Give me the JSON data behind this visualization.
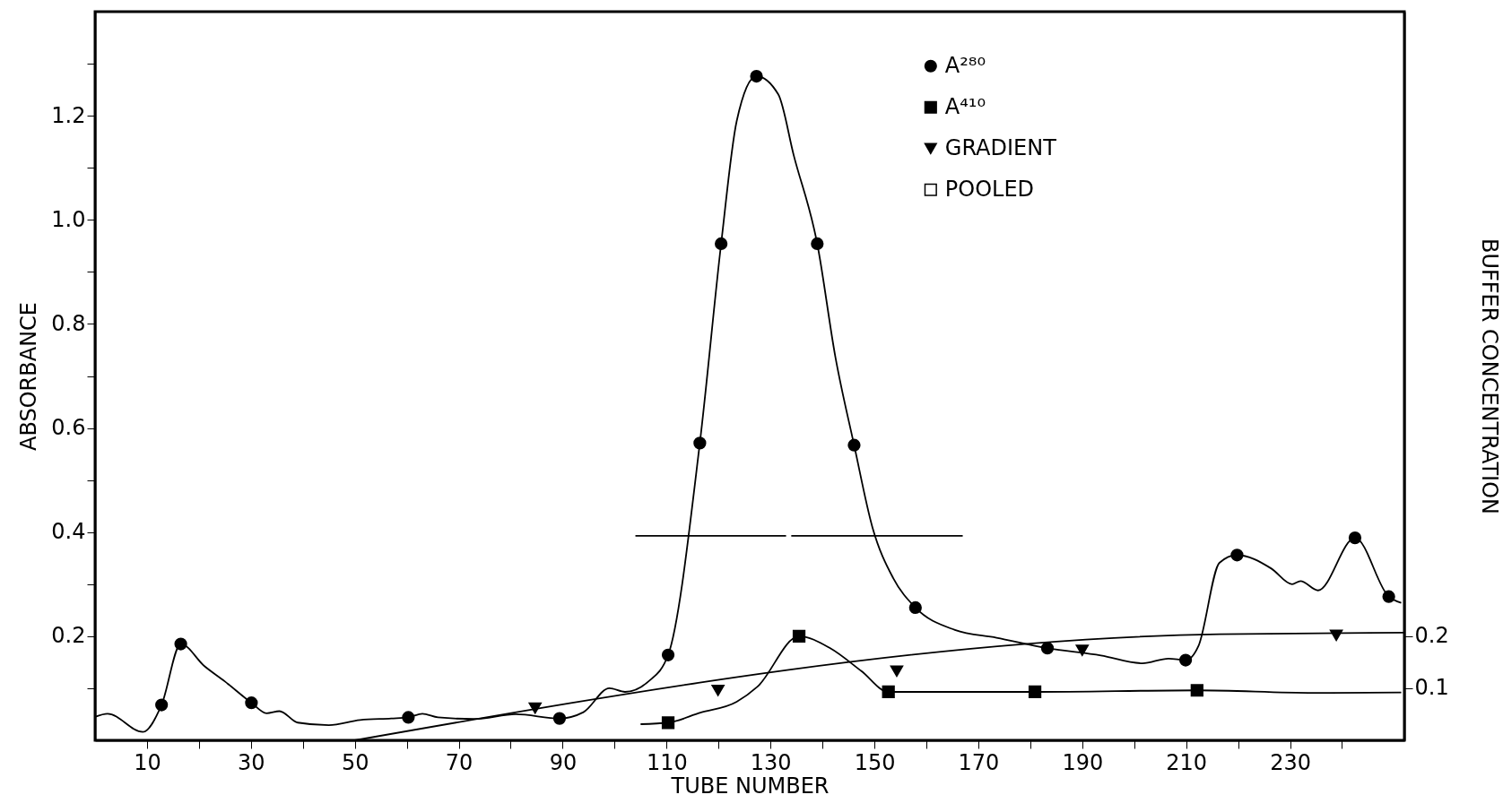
{
  "chart_data": {
    "type": "line",
    "xlabel": "TUBE NUMBER",
    "ylabel": "ABSORBANCE",
    "y2label": "BUFFER CONCENTRATION",
    "xlim": [
      0,
      252
    ],
    "ylim": [
      0,
      1.4
    ],
    "y2lim": [
      0,
      1.4
    ],
    "xticks": [
      10,
      {
        "value": 20,
        "label": null
      },
      30,
      {
        "value": 40,
        "label": null
      },
      50,
      {
        "value": 60,
        "label": null
      },
      70,
      {
        "value": 80,
        "label": null
      },
      90,
      {
        "value": 100,
        "label": null
      },
      110,
      {
        "value": 120,
        "label": null
      },
      130,
      {
        "value": 140,
        "label": null
      },
      150,
      {
        "value": 160,
        "label": null
      },
      170,
      {
        "value": 180,
        "label": null
      },
      190,
      {
        "value": 200,
        "label": null
      },
      210,
      {
        "value": 220,
        "label": null
      },
      230,
      {
        "value": 240,
        "label": null
      }
    ],
    "yticks": [
      {
        "value": 0.1,
        "label": null
      },
      0.2,
      {
        "value": 0.3,
        "label": null
      },
      0.4,
      {
        "value": 0.5,
        "label": null
      },
      0.6,
      {
        "value": 0.7,
        "label": null
      },
      0.8,
      {
        "value": 0.9,
        "label": null
      },
      {
        "value": 1.0,
        "label": "1.0"
      },
      {
        "value": 1.1,
        "label": null
      },
      1.2,
      {
        "value": 1.3,
        "label": null
      }
    ],
    "y2ticks": [
      0.1,
      0.2
    ],
    "grid": false,
    "legend": "top right",
    "line_style": "solid",
    "series": [
      {
        "marker": "none",
        "color": "#000000",
        "x": [
          0,
          2.4,
          9.2,
          12.8,
          16.5,
          21,
          25,
          30.1,
          33,
          35.5,
          39,
          45,
          51,
          57,
          60.3,
          63,
          66,
          73,
          81,
          89.4,
          94,
          99,
          102,
          106.5,
          110.3,
          116.4,
          120.5,
          123.5,
          127.3,
          131.5,
          134.5,
          139,
          142.5,
          146.1,
          149.6,
          153.6,
          157.9,
          165.5,
          173.5,
          183.3,
          193.6,
          201.6,
          206.6,
          209.9,
          212.4,
          216.4,
          219.8,
          226.4,
          230.4,
          232,
          235.4,
          242.5,
          249,
          251.4
        ],
        "values": [
          0.045,
          0.051,
          0.016,
          0.068,
          0.185,
          0.143,
          0.113,
          0.072,
          0.052,
          0.056,
          0.034,
          0.029,
          0.039,
          0.042,
          0.044,
          0.051,
          0.044,
          0.041,
          0.05,
          0.042,
          0.054,
          0.1,
          0.093,
          0.113,
          0.164,
          0.571,
          0.954,
          1.19,
          1.276,
          1.241,
          1.123,
          0.954,
          0.736,
          0.567,
          0.41,
          0.312,
          0.255,
          0.212,
          0.197,
          0.177,
          0.163,
          0.148,
          0.157,
          0.154,
          0.182,
          0.341,
          0.356,
          0.33,
          0.3,
          0.306,
          0.288,
          0.389,
          0.276,
          0.264
        ]
      },
      {
        "name": "A²⁸⁰",
        "type": "scatter",
        "marker": "circle",
        "color": "#000000",
        "x": [
          12.8,
          16.5,
          30.1,
          60.3,
          89.4,
          110.3,
          116.4,
          120.5,
          127.3,
          139,
          146.1,
          157.9,
          183.3,
          209.9,
          219.8,
          242.5,
          249
        ],
        "values": [
          0.068,
          0.185,
          0.072,
          0.044,
          0.042,
          0.164,
          0.571,
          0.954,
          1.276,
          0.954,
          0.567,
          0.255,
          0.177,
          0.154,
          0.356,
          0.389,
          0.276
        ]
      },
      {
        "marker": "none",
        "color": "#000000",
        "x": [
          105,
          110.3,
          116.5,
          123.5,
          127.5,
          135.5,
          141.5,
          147.5,
          152.7,
          180.9,
          212.1,
          234.5,
          251.4
        ],
        "values": [
          0.031,
          0.034,
          0.053,
          0.074,
          0.103,
          0.2,
          0.177,
          0.133,
          0.093,
          0.093,
          0.096,
          0.091,
          0.092
        ]
      },
      {
        "name": "A⁴¹⁰",
        "type": "scatter",
        "marker": "square",
        "color": "#000000",
        "x": [
          110.3,
          135.5,
          152.7,
          180.9,
          212.1
        ],
        "values": [
          0.034,
          0.2,
          0.093,
          0.093,
          0.096
        ]
      },
      {
        "marker": "none",
        "axis": "y2",
        "color": "#000000",
        "x": [
          50,
          216.4,
          252
        ],
        "values": [
          0,
          0.204,
          0.207
        ]
      },
      {
        "name": "GRADIENT",
        "type": "scatter",
        "marker": "triangle",
        "axis": "y2",
        "color": "#000000",
        "x": [
          84.7,
          119.9,
          154.3,
          190,
          238.9
        ],
        "values": [
          0.062,
          0.096,
          0.133,
          0.173,
          0.202
        ]
      },
      {
        "name": "POOLED",
        "marker": "none",
        "color": "#000000",
        "x": [
          104,
          133
        ],
        "values": [
          0.393,
          0.393
        ]
      },
      {
        "color": "#000000",
        "x": [
          134,
          167
        ],
        "values": [
          0.393,
          0.393
        ]
      }
    ]
  }
}
